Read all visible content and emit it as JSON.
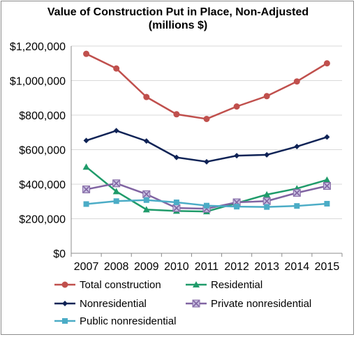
{
  "chart_data": {
    "type": "line",
    "title": "Value of Construction Put in Place, Non-Adjusted",
    "subtitle": "(millions $)",
    "x": [
      "2007",
      "2008",
      "2009",
      "2010",
      "2011",
      "2012",
      "2013",
      "2014",
      "2015"
    ],
    "ylim": [
      0,
      1200000
    ],
    "yticks": [
      "$0",
      "$200,000",
      "$400,000",
      "$600,000",
      "$800,000",
      "$1,000,000",
      "$1,200,000"
    ],
    "grid": true,
    "legend_position": "bottom",
    "series": [
      {
        "name": "Total construction",
        "color": "#c0504d",
        "marker": "circle",
        "values": [
          1155000,
          1070000,
          905000,
          805000,
          778000,
          850000,
          910000,
          995000,
          1100000
        ]
      },
      {
        "name": "Residential",
        "color": "#1f9b6a",
        "marker": "triangle",
        "values": [
          500000,
          358000,
          253000,
          245000,
          242000,
          290000,
          340000,
          375000,
          425000
        ]
      },
      {
        "name": "Nonresidential",
        "color": "#0f2356",
        "marker": "diamond",
        "values": [
          653000,
          710000,
          650000,
          555000,
          530000,
          565000,
          570000,
          618000,
          673000
        ]
      },
      {
        "name": "Private nonresidential",
        "color": "#8064a2",
        "marker": "x",
        "values": [
          370000,
          405000,
          342000,
          262000,
          258000,
          295000,
          302000,
          350000,
          390000
        ]
      },
      {
        "name": "Public nonresidential",
        "color": "#4bacc6",
        "marker": "square",
        "values": [
          285000,
          302000,
          308000,
          295000,
          276000,
          270000,
          268000,
          274000,
          287000
        ]
      }
    ]
  }
}
